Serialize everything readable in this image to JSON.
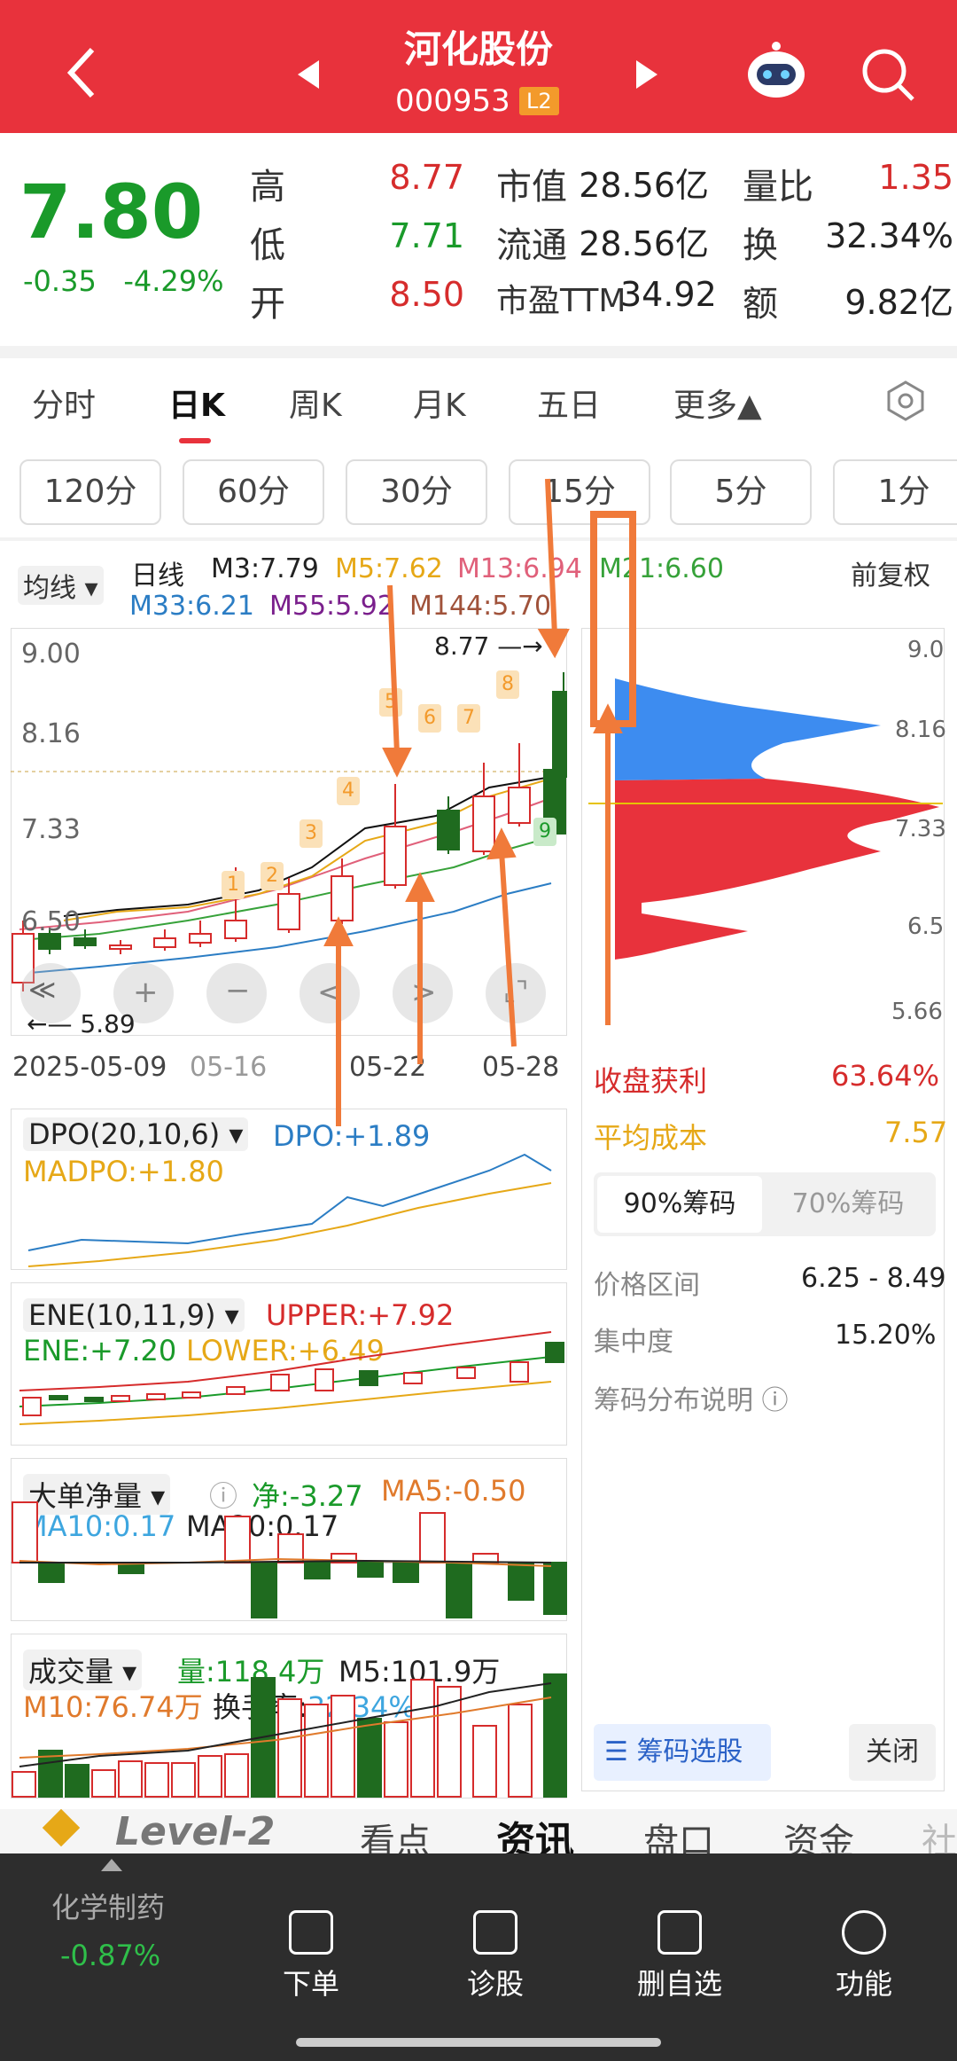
{
  "header": {
    "title": "河化股份",
    "code": "000953",
    "badge": "L2"
  },
  "quote": {
    "price": "7.80",
    "change": "-0.35",
    "change_pct": "-4.29%",
    "rows": [
      {
        "l1": "高",
        "v1": "8.77",
        "l2": "市值",
        "v2": "28.56亿",
        "l3": "量比",
        "v3": "1.35"
      },
      {
        "l1": "低",
        "v1": "7.71",
        "l2": "流通",
        "v2": "28.56亿",
        "l3": "换",
        "v3": "32.34%"
      },
      {
        "l1": "开",
        "v1": "8.50",
        "l2": "市盈TTM",
        "v2": "34.92",
        "l3": "额",
        "v3": "9.82亿"
      }
    ]
  },
  "tabs": [
    "分时",
    "日K",
    "周K",
    "月K",
    "五日",
    "更多▲"
  ],
  "periods": [
    "120分",
    "60分",
    "30分",
    "15分",
    "5分",
    "1分"
  ],
  "kline": {
    "selector": "均线 ▾",
    "label": "日线",
    "m3": "M3:7.79",
    "m5": "M5:7.62",
    "m13": "M13:6.94",
    "m21": "M21:6.60",
    "adj": "前复权",
    "m33": "M33:6.21",
    "m55": "M55:5.92",
    "m144": "M144:5.70",
    "yaxis": [
      "9.00",
      "8.16",
      "7.33",
      "6.50"
    ],
    "high_label": "8.77",
    "low_label": "5.89",
    "dates": [
      "2025-05-09",
      "05-16",
      "05-22",
      "05-28"
    ],
    "counts": [
      "1",
      "2",
      "3",
      "4",
      "5",
      "6",
      "7",
      "8",
      "9"
    ]
  },
  "chips": {
    "yaxis": [
      "9.0",
      "8.16",
      "7.33",
      "6.5",
      "5.66"
    ],
    "profit_label": "收盘获利",
    "profit": "63.64%",
    "cost_label": "平均成本",
    "cost": "7.57",
    "tab90": "90%筹码",
    "tab70": "70%筹码",
    "range_label": "价格区间",
    "range": "6.25 - 8.49",
    "conc_label": "集中度",
    "conc": "15.20%",
    "explain": "筹码分布说明 ⓘ",
    "select_btn": "筹码选股",
    "close_btn": "关闭"
  },
  "dpo": {
    "name": "DPO(20,10,6) ▾",
    "dpo": "DPO:+1.89",
    "madpo": "MADPO:+1.80"
  },
  "ene": {
    "name": "ENE(10,11,9) ▾",
    "upper": "UPPER:+7.92",
    "ene": "ENE:+7.20",
    "lower": "LOWER:+6.49"
  },
  "bignet": {
    "name": "大单净量 ▾",
    "net": "净:-3.27",
    "ma5": "MA5:-0.50",
    "ma10": "MA10:0.17",
    "ma20": "MA20:0.17"
  },
  "volume": {
    "name": "成交量 ▾",
    "vol": "量:118.4万",
    "m5": "M5:101.9万",
    "m10": "M10:76.74万",
    "turnover_label": "换手率:",
    "turnover": "32.34%"
  },
  "bottom_tabs": [
    "Level-2",
    "看点",
    "资讯",
    "盘口",
    "资金",
    "社"
  ],
  "bottom_bar": {
    "sector": "化学制药",
    "sector_chg": "-0.87%",
    "items": [
      "下单",
      "诊股",
      "删自选",
      "功能"
    ]
  },
  "colors": {
    "header": "#e8323c",
    "up": "#d62c2c",
    "down": "#1a9a2a",
    "orange": "#f39a2b"
  }
}
